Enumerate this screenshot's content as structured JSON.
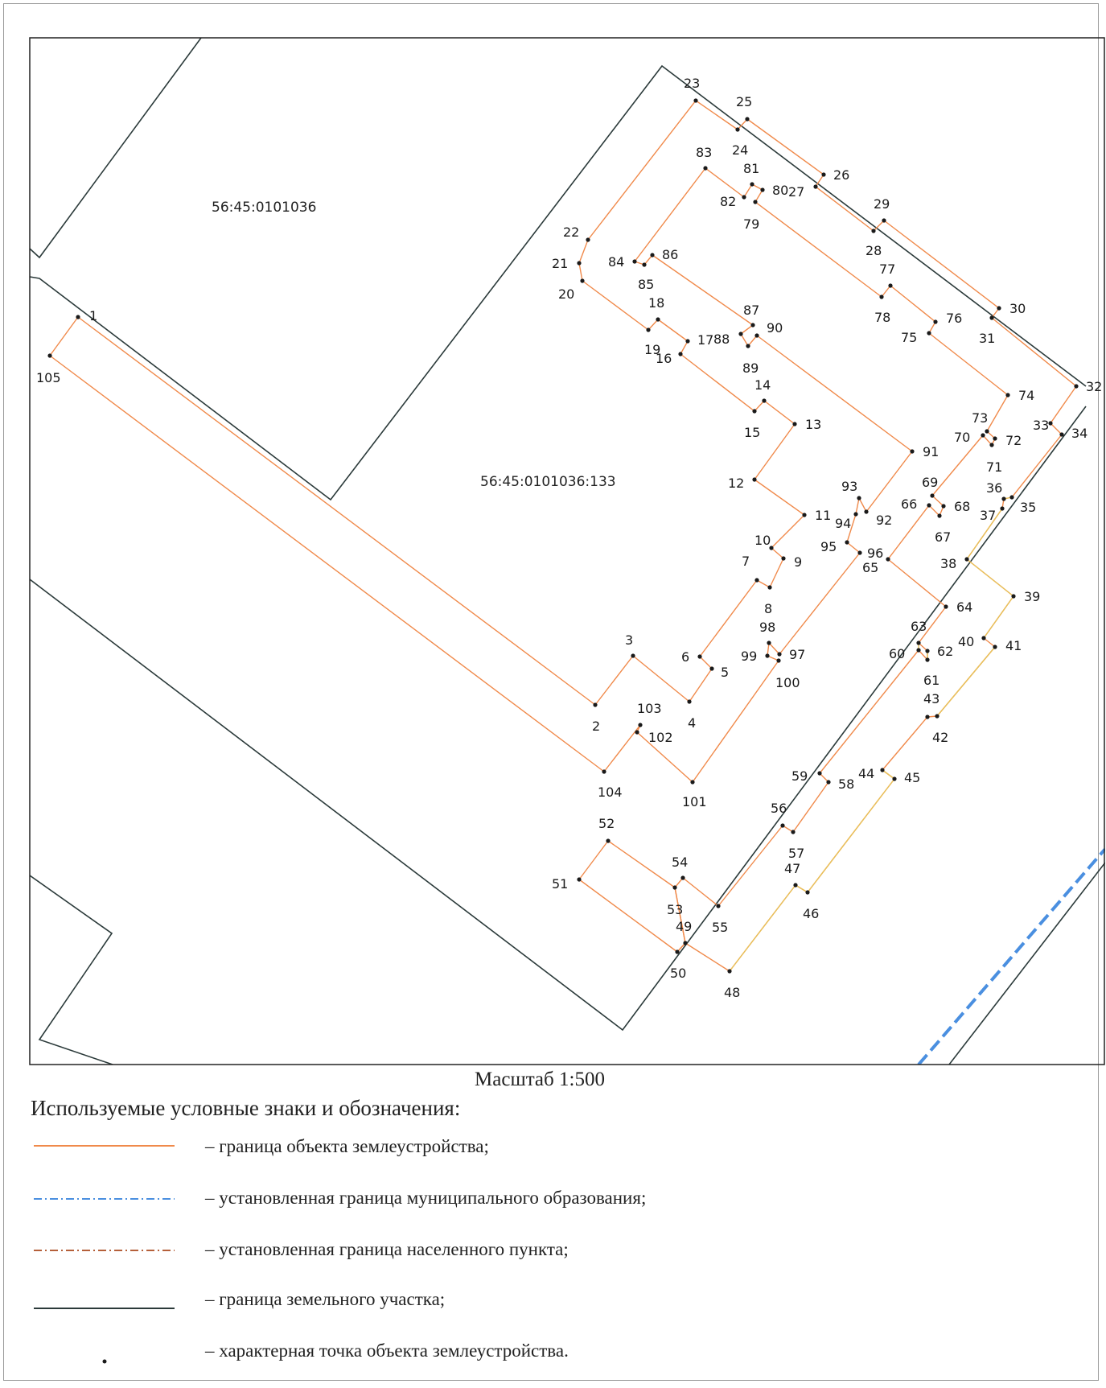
{
  "map": {
    "parcels": [
      {
        "label": "56:45:0101036"
      },
      {
        "label": "56:45:0101036:133"
      }
    ],
    "points": [
      {
        "n": "1"
      },
      {
        "n": "2"
      },
      {
        "n": "3"
      },
      {
        "n": "4"
      },
      {
        "n": "5"
      },
      {
        "n": "6"
      },
      {
        "n": "7"
      },
      {
        "n": "8"
      },
      {
        "n": "9"
      },
      {
        "n": "10"
      },
      {
        "n": "11"
      },
      {
        "n": "12"
      },
      {
        "n": "13"
      },
      {
        "n": "14"
      },
      {
        "n": "15"
      },
      {
        "n": "16"
      },
      {
        "n": "17"
      },
      {
        "n": "18"
      },
      {
        "n": "19"
      },
      {
        "n": "20"
      },
      {
        "n": "21"
      },
      {
        "n": "22"
      },
      {
        "n": "23"
      },
      {
        "n": "24"
      },
      {
        "n": "25"
      },
      {
        "n": "26"
      },
      {
        "n": "27"
      },
      {
        "n": "28"
      },
      {
        "n": "29"
      },
      {
        "n": "30"
      },
      {
        "n": "31"
      },
      {
        "n": "32"
      },
      {
        "n": "33"
      },
      {
        "n": "34"
      },
      {
        "n": "35"
      },
      {
        "n": "36"
      },
      {
        "n": "37"
      },
      {
        "n": "38"
      },
      {
        "n": "39"
      },
      {
        "n": "40"
      },
      {
        "n": "41"
      },
      {
        "n": "42"
      },
      {
        "n": "43"
      },
      {
        "n": "44"
      },
      {
        "n": "45"
      },
      {
        "n": "46"
      },
      {
        "n": "47"
      },
      {
        "n": "48"
      },
      {
        "n": "49"
      },
      {
        "n": "50"
      },
      {
        "n": "51"
      },
      {
        "n": "52"
      },
      {
        "n": "53"
      },
      {
        "n": "54"
      },
      {
        "n": "55"
      },
      {
        "n": "56"
      },
      {
        "n": "57"
      },
      {
        "n": "58"
      },
      {
        "n": "59"
      },
      {
        "n": "60"
      },
      {
        "n": "61"
      },
      {
        "n": "62"
      },
      {
        "n": "63"
      },
      {
        "n": "64"
      },
      {
        "n": "65"
      },
      {
        "n": "66"
      },
      {
        "n": "67"
      },
      {
        "n": "68"
      },
      {
        "n": "69"
      },
      {
        "n": "70"
      },
      {
        "n": "71"
      },
      {
        "n": "72"
      },
      {
        "n": "73"
      },
      {
        "n": "74"
      },
      {
        "n": "75"
      },
      {
        "n": "76"
      },
      {
        "n": "77"
      },
      {
        "n": "78"
      },
      {
        "n": "79"
      },
      {
        "n": "80"
      },
      {
        "n": "81"
      },
      {
        "n": "82"
      },
      {
        "n": "83"
      },
      {
        "n": "84"
      },
      {
        "n": "85"
      },
      {
        "n": "86"
      },
      {
        "n": "87"
      },
      {
        "n": "88"
      },
      {
        "n": "89"
      },
      {
        "n": "90"
      },
      {
        "n": "91"
      },
      {
        "n": "92"
      },
      {
        "n": "93"
      },
      {
        "n": "94"
      },
      {
        "n": "95"
      },
      {
        "n": "96"
      },
      {
        "n": "97"
      },
      {
        "n": "98"
      },
      {
        "n": "99"
      },
      {
        "n": "100"
      },
      {
        "n": "101"
      },
      {
        "n": "102"
      },
      {
        "n": "103"
      },
      {
        "n": "104"
      },
      {
        "n": "105"
      }
    ],
    "colors": {
      "object_boundary": "#f08a4b",
      "object_boundary_yellow": "#e8c25a",
      "parcel_boundary": "#2b3a3a",
      "municipal_boundary": "#4a8fe0",
      "settlement_boundary": "#b5603a",
      "point": "#1a1a1a"
    }
  },
  "scale": "Масштаб 1:500",
  "legend": {
    "title": "Используемые условные знаки и обозначения:",
    "items": [
      {
        "symbol": "object-boundary",
        "label": "– граница объекта землеустройства;"
      },
      {
        "symbol": "municipal-boundary",
        "label": "– установленная граница муниципального образования;"
      },
      {
        "symbol": "settlement-boundary",
        "label": "– установленная граница населенного пункта;"
      },
      {
        "symbol": "parcel-boundary",
        "label": "– граница земельного участка;"
      },
      {
        "symbol": "characteristic-point",
        "label": "– характерная точка объекта землеустройства."
      }
    ]
  }
}
